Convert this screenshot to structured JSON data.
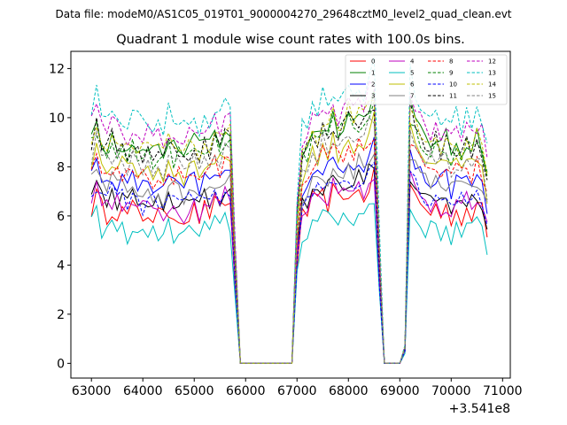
{
  "chart_data": {
    "type": "line",
    "suptitle": "Data file: modeM0/AS1C05_019T01_9000004270_29648cztM0_level2_quad_clean.evt",
    "title": "Quadrant 1 module wise count rates with 100.0s bins.",
    "xlabel": "",
    "ylabel": "",
    "x_offset_label": "+3.541e8",
    "xlim": [
      62600,
      71150
    ],
    "ylim": [
      -0.6,
      12.7
    ],
    "x_ticks": [
      63000,
      64000,
      65000,
      66000,
      67000,
      68000,
      69000,
      70000,
      71000
    ],
    "x_tick_labels": [
      "63000",
      "64000",
      "65000",
      "66000",
      "67000",
      "68000",
      "69000",
      "70000",
      "71000"
    ],
    "y_ticks": [
      0,
      2,
      4,
      6,
      8,
      10,
      12
    ],
    "y_tick_labels": [
      "0",
      "2",
      "4",
      "6",
      "8",
      "10",
      "12"
    ],
    "bin_width": 100,
    "segments": [
      {
        "start": 63000,
        "n": 28
      },
      {
        "start": 65800,
        "n": 12
      },
      {
        "start": 67000,
        "n": 14
      },
      {
        "start": 68400,
        "n": 7
      },
      {
        "start": 69100,
        "n": 17
      }
    ],
    "segment_profiles": [
      [
        0.96,
        1.03,
        0.95,
        0.92,
        0.97,
        0.94,
        0.93,
        0.91,
        0.95,
        0.92,
        0.9,
        0.94,
        0.9,
        0.92,
        0.88,
        0.95,
        0.91,
        0.93,
        0.89,
        0.92,
        0.94,
        0.9,
        0.95,
        0.93,
        0.97,
        0.94,
        1.0,
        0.97
      ],
      [
        0.45,
        0,
        0,
        0,
        0,
        0,
        0,
        0,
        0,
        0,
        0,
        0
      ],
      [
        0.62,
        0.9,
        0.93,
        1.0,
        0.97,
        1.02,
        0.99,
        1.05,
        1.0,
        1.03,
        1.07,
        1.02,
        1.06,
        1.03
      ],
      [
        1.1,
        1.14,
        0.5,
        0,
        0,
        0,
        0
      ],
      [
        0.07,
        1.1,
        1.02,
        0.97,
        0.95,
        0.93,
        0.97,
        0.92,
        0.95,
        0.9,
        0.94,
        0.91,
        0.95,
        0.92,
        0.97,
        0.93,
        0.8
      ]
    ],
    "series": [
      {
        "name": "0",
        "color": "#ff0000",
        "dashed": false,
        "base": 6.6
      },
      {
        "name": "1",
        "color": "#008000",
        "dashed": false,
        "base": 9.6
      },
      {
        "name": "2",
        "color": "#0000ff",
        "dashed": false,
        "base": 7.9
      },
      {
        "name": "3",
        "color": "#000000",
        "dashed": false,
        "base": 7.1
      },
      {
        "name": "4",
        "color": "#bf00bf",
        "dashed": false,
        "base": 6.9
      },
      {
        "name": "5",
        "color": "#00bfbf",
        "dashed": false,
        "base": 5.8
      },
      {
        "name": "6",
        "color": "#bfbf00",
        "dashed": false,
        "base": 8.6
      },
      {
        "name": "7",
        "color": "#808080",
        "dashed": false,
        "base": 7.7
      },
      {
        "name": "8",
        "color": "#ff0000",
        "dashed": true,
        "base": 8.3
      },
      {
        "name": "9",
        "color": "#008000",
        "dashed": true,
        "base": 9.2
      },
      {
        "name": "10",
        "color": "#0000ff",
        "dashed": true,
        "base": 7.2
      },
      {
        "name": "11",
        "color": "#000000",
        "dashed": true,
        "base": 9.4
      },
      {
        "name": "12",
        "color": "#bf00bf",
        "dashed": true,
        "base": 10.1
      },
      {
        "name": "13",
        "color": "#00bfbf",
        "dashed": true,
        "base": 10.7
      },
      {
        "name": "14",
        "color": "#bfbf00",
        "dashed": true,
        "base": 9.6
      },
      {
        "name": "15",
        "color": "#808080",
        "dashed": true,
        "base": 8.8
      }
    ],
    "legend_position": "top-right",
    "legend_columns": 4
  }
}
